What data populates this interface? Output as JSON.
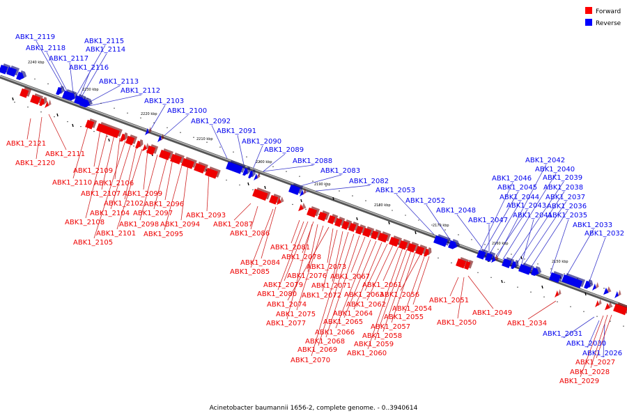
{
  "caption": "Acinetobacter baumannii 1656-2, complete genome. - 0..3940614",
  "legend": {
    "forward": {
      "label": "Forward",
      "color": "#ff0000"
    },
    "reverse": {
      "label": "Reverse",
      "color": "#0000ff"
    }
  },
  "colors": {
    "backbone": "#8c8c8c",
    "reverse_gene": "#0000ee",
    "forward_gene": "#ee0000",
    "leader_reverse": "#3333cc",
    "leader_forward": "#cc2222"
  },
  "scale_ticks": [
    "2240 kbp",
    "2230 kbp",
    "2220 kbp",
    "2210 kbp",
    "2200 kbp",
    "2190 kbp",
    "2180 kbp",
    "2170 kbp",
    "2160 kbp",
    "2150 kbp"
  ],
  "reverse_genes": [
    "ABK1_2119",
    "ABK1_2118",
    "ABK1_2117",
    "ABK1_2116",
    "ABK1_2115",
    "ABK1_2114",
    "ABK1_2113",
    "ABK1_2112",
    "ABK1_2103",
    "ABK1_2100",
    "ABK1_2092",
    "ABK1_2091",
    "ABK1_2090",
    "ABK1_2089",
    "ABK1_2088",
    "ABK1_2083",
    "ABK1_2082",
    "ABK1_2053",
    "ABK1_2052",
    "ABK1_2048",
    "ABK1_2047",
    "ABK1_2046",
    "ABK1_2045",
    "ABK1_2044",
    "ABK1_2043",
    "ABK1_2042",
    "ABK1_2041",
    "ABK1_2040",
    "ABK1_2039",
    "ABK1_2038",
    "ABK1_2037",
    "ABK1_2036",
    "ABK1_2035",
    "ABK1_2033",
    "ABK1_2032",
    "ABK1_2031",
    "ABK1_2030",
    "ABK1_2026"
  ],
  "forward_genes": [
    "ABK1_2121",
    "ABK1_2120",
    "ABK1_2111",
    "ABK1_2110",
    "ABK1_2109",
    "ABK1_2108",
    "ABK1_2107",
    "ABK1_2106",
    "ABK1_2105",
    "ABK1_2104",
    "ABK1_2102",
    "ABK1_2101",
    "ABK1_2099",
    "ABK1_2098",
    "ABK1_2097",
    "ABK1_2096",
    "ABK1_2095",
    "ABK1_2094",
    "ABK1_2093",
    "ABK1_2087",
    "ABK1_2086",
    "ABK1_2085",
    "ABK1_2084",
    "ABK1_2081",
    "ABK1_2080",
    "ABK1_2079",
    "ABK1_2078",
    "ABK1_2077",
    "ABK1_2076",
    "ABK1_2075",
    "ABK1_2074",
    "ABK1_2073",
    "ABK1_2072",
    "ABK1_2071",
    "ABK1_2070",
    "ABK1_2069",
    "ABK1_2068",
    "ABK1_2067",
    "ABK1_2066",
    "ABK1_2065",
    "ABK1_2064",
    "ABK1_2063",
    "ABK1_2062",
    "ABK1_2061",
    "ABK1_2060",
    "ABK1_2059",
    "ABK1_2058",
    "ABK1_2057",
    "ABK1_2056",
    "ABK1_2055",
    "ABK1_2054",
    "ABK1_2051",
    "ABK1_2050",
    "ABK1_2049",
    "ABK1_2034",
    "ABK1_2029",
    "ABK1_2028",
    "ABK1_2027"
  ]
}
